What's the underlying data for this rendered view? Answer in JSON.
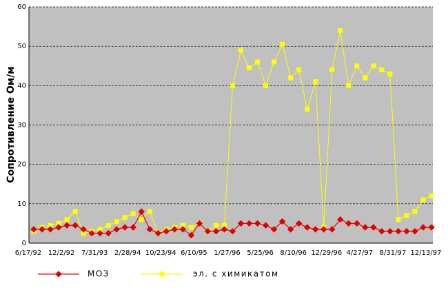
{
  "chart_data": {
    "type": "line",
    "y_label": "Сопротивление Ом/м",
    "categories": [
      "6/17/92",
      null,
      null,
      null,
      "12/2/92",
      null,
      null,
      null,
      "7/31/93",
      null,
      null,
      null,
      "2/28/94",
      null,
      null,
      null,
      "10/23/94",
      null,
      null,
      null,
      "6/10/95",
      null,
      null,
      null,
      "1/27/96",
      null,
      null,
      null,
      "5/25/96",
      null,
      null,
      null,
      "8/10/96",
      null,
      null,
      null,
      "12/29/96",
      null,
      null,
      null,
      "4/27/97",
      null,
      null,
      null,
      "8/31/97",
      null,
      null,
      null,
      "12/13/97"
    ],
    "series": [
      {
        "name": "МОЗ",
        "color": "#e00000",
        "marker": "diamond",
        "values": [
          3.5,
          3.5,
          3.5,
          4,
          4.5,
          4.5,
          3.5,
          2.5,
          2.5,
          2.5,
          3.5,
          4,
          4,
          8,
          3.5,
          2.5,
          3,
          3.5,
          3.5,
          2,
          5,
          3,
          3,
          3.5,
          3,
          5,
          5,
          5,
          4.5,
          3.5,
          5.5,
          3.5,
          5,
          4,
          3.5,
          3.5,
          3.5,
          6,
          5,
          5,
          4,
          4,
          3,
          3,
          3,
          3,
          3,
          4,
          4
        ]
      },
      {
        "name": "эл. с химикатом",
        "color": "#ffff00",
        "marker": "square",
        "values": [
          3,
          4,
          4.5,
          5,
          6,
          8,
          2.5,
          3,
          3.5,
          4.5,
          5.5,
          6.5,
          7.5,
          6,
          8,
          2.5,
          3.5,
          4,
          4.5,
          4,
          5,
          3,
          4.5,
          4.5,
          40,
          49,
          44.5,
          46,
          40,
          46,
          50.5,
          42,
          44,
          34,
          41,
          4,
          44,
          54,
          40,
          45,
          42,
          45,
          44,
          43,
          6,
          7,
          8,
          11,
          12
        ]
      }
    ],
    "ylim": [
      0,
      60
    ],
    "yticks": [
      0,
      10,
      20,
      30,
      40,
      50,
      60
    ],
    "grid": true
  }
}
